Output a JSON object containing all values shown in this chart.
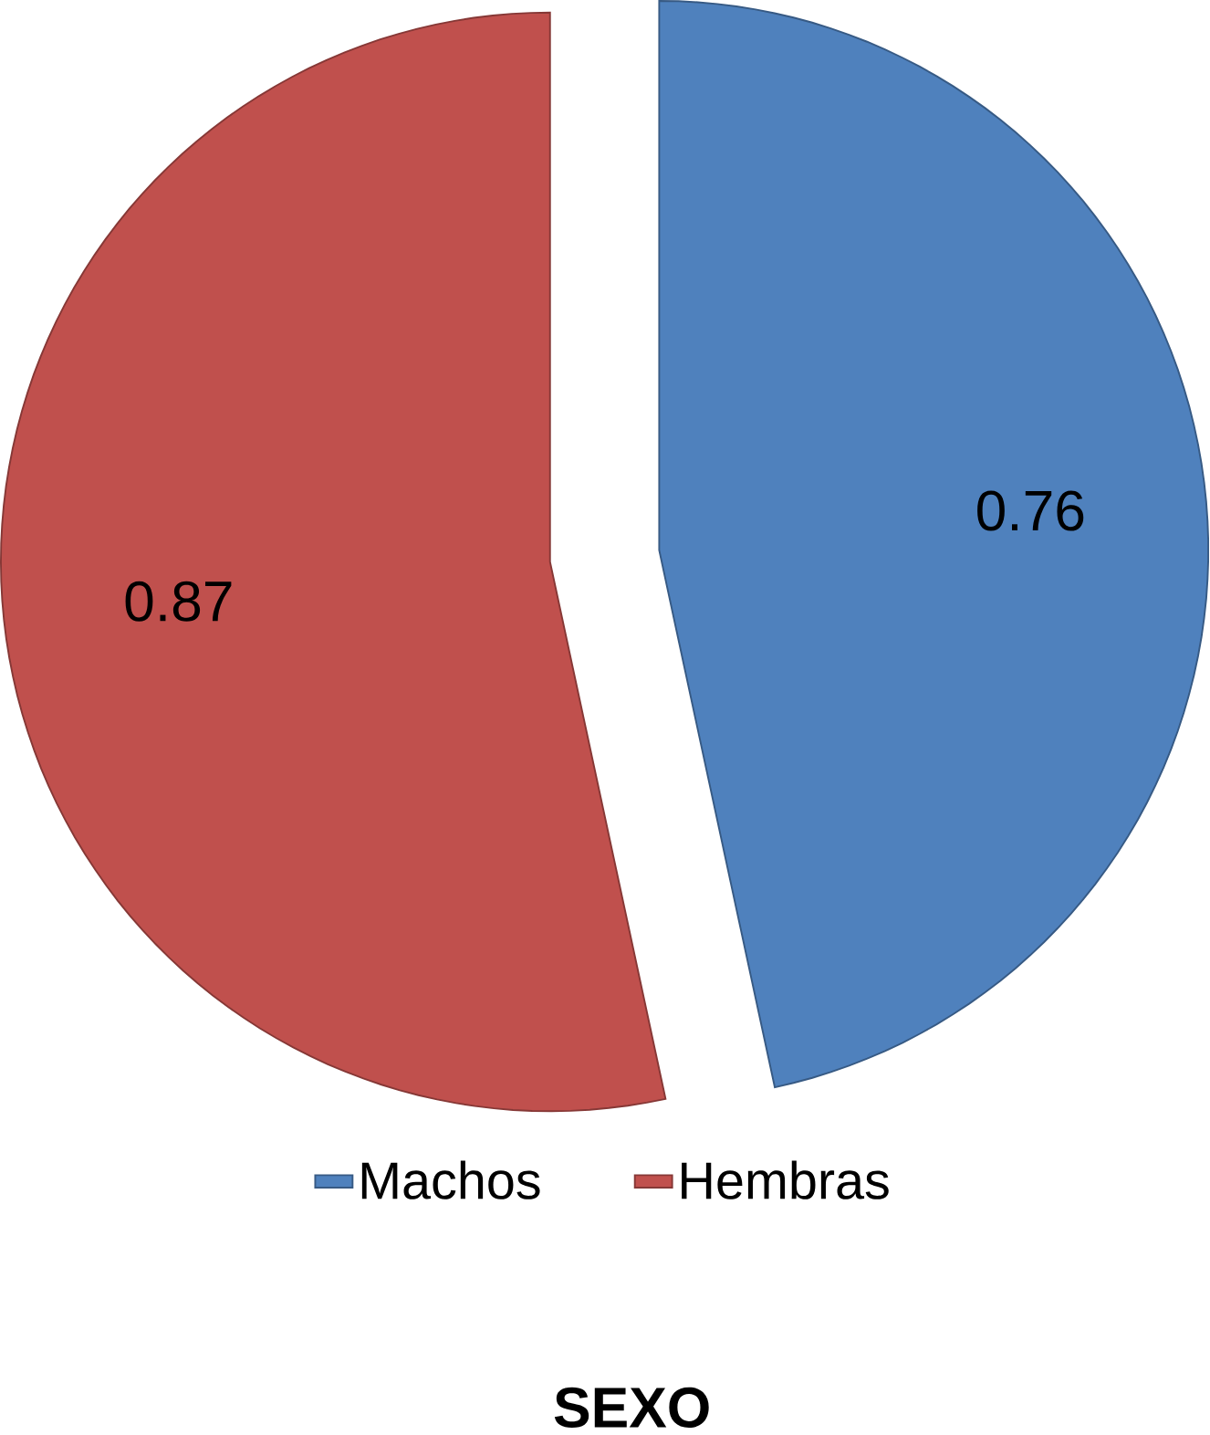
{
  "chart_data": {
    "type": "pie",
    "title": "SEXO",
    "categories": [
      "Machos",
      "Hembras"
    ],
    "values": [
      0.76,
      0.87
    ],
    "colors": [
      "#4f81bd",
      "#c0504d"
    ],
    "data_labels": true,
    "legend": "bottom"
  }
}
